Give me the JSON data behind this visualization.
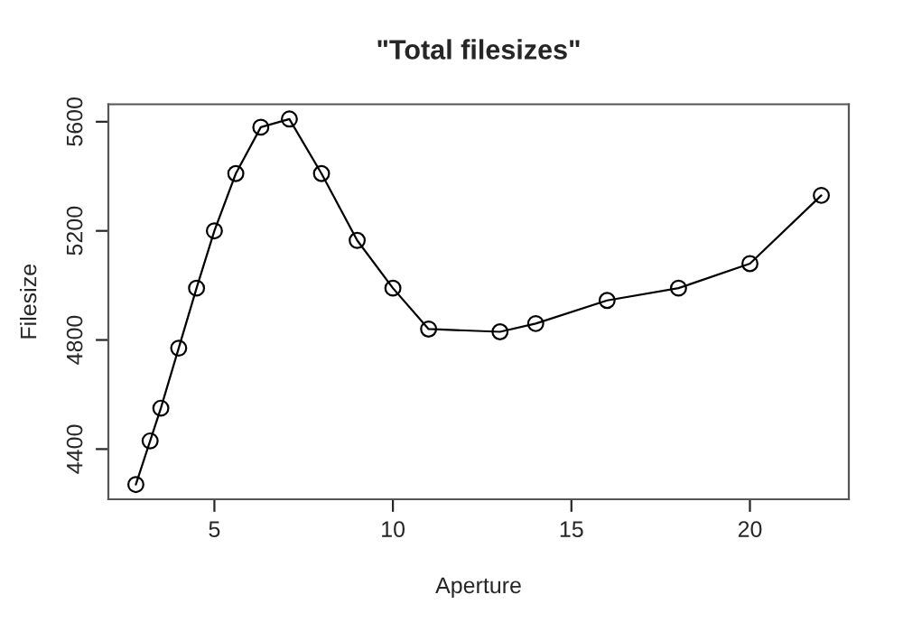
{
  "chart_data": {
    "type": "line",
    "title": "\"Total filesizes\"",
    "xlabel": "Aperture",
    "ylabel": "Filesize",
    "x": [
      2.8,
      3.2,
      3.5,
      4,
      4.5,
      5,
      5.6,
      6.3,
      7.1,
      8,
      9,
      10,
      11,
      13,
      14,
      16,
      18,
      20,
      22
    ],
    "series": [
      {
        "color": "#000000",
        "values": [
          4270,
          4430,
          4550,
          4770,
          4990,
          5200,
          5410,
          5580,
          5610,
          5410,
          5165,
          4990,
          4840,
          4830,
          4860,
          4945,
          4990,
          5080,
          5330
        ]
      }
    ],
    "xlim": [
      2.03,
      22.77
    ],
    "ylim": [
      4216,
      5664
    ],
    "xticks": [
      5,
      10,
      15,
      20
    ],
    "yticks": [
      4400,
      4800,
      5200,
      5600
    ],
    "marker": "circle",
    "line_style": "solid",
    "grid": false,
    "legend": false
  }
}
